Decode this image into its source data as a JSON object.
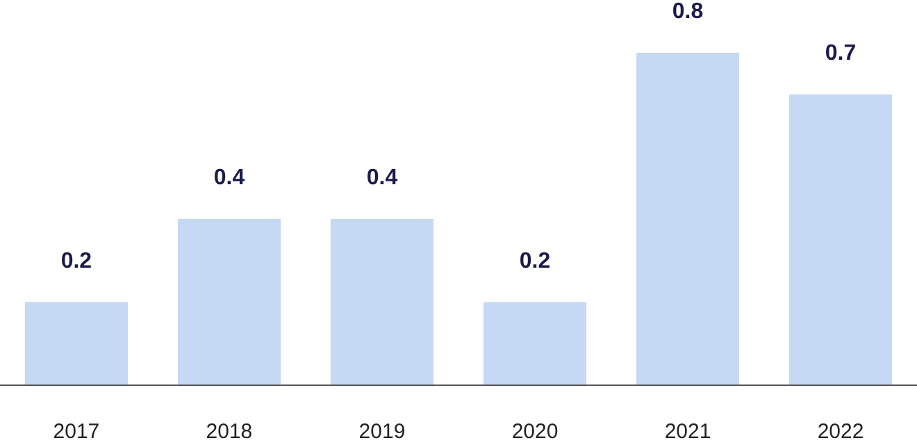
{
  "chart_data": {
    "type": "bar",
    "categories": [
      "2017",
      "2018",
      "2019",
      "2020",
      "2021",
      "2022"
    ],
    "values": [
      0.2,
      0.4,
      0.4,
      0.2,
      0.8,
      0.7
    ],
    "color": "#c5d8f4",
    "data_labels": true
  }
}
